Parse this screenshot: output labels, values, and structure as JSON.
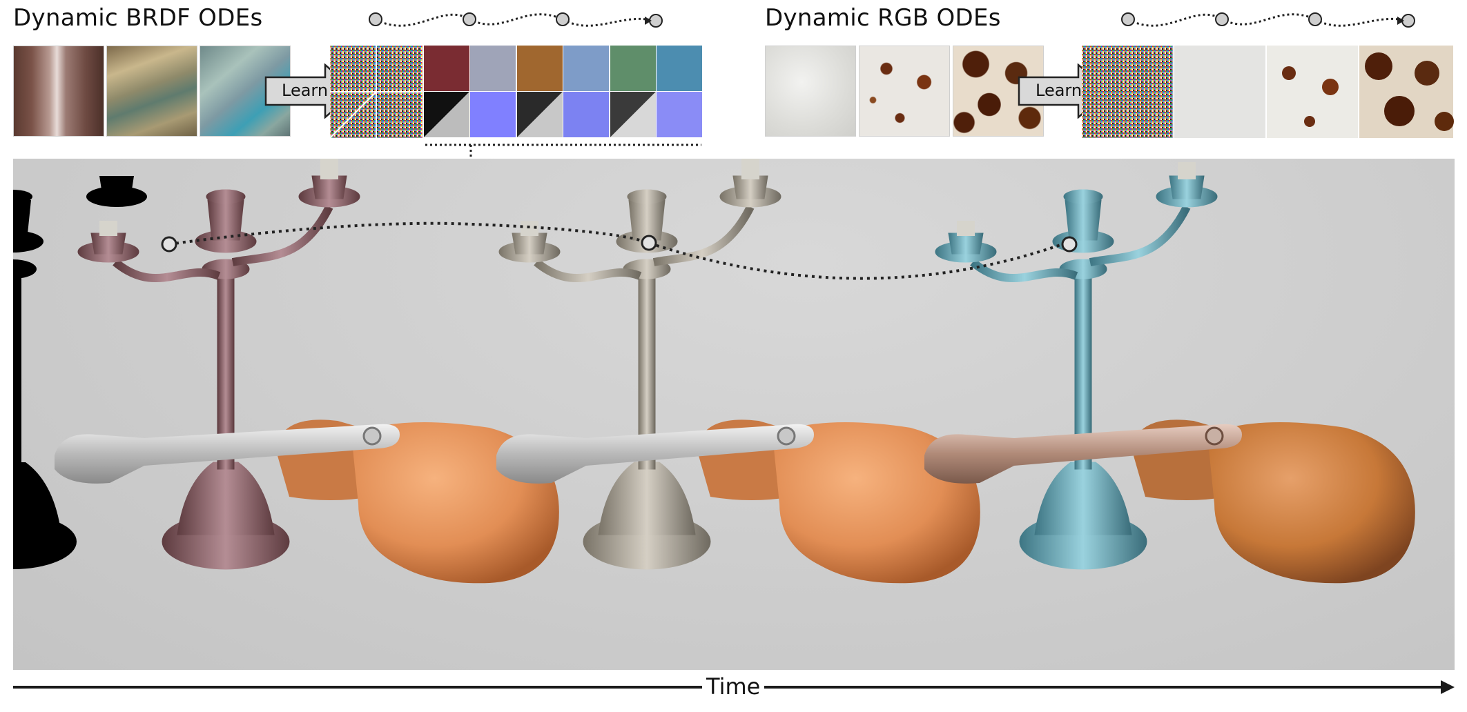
{
  "brdf_section": {
    "title": "Dynamic BRDF ODEs",
    "learn_label": "Learn"
  },
  "rgb_section": {
    "title": "Dynamic RGB ODEs",
    "learn_label": "Learn"
  },
  "time_label": "Time",
  "colors": {
    "axis": "#1a1a1a",
    "arrow_fill": "#d9d9d9",
    "node_fill": "#cfcfcf",
    "copper": "#a07a80",
    "silver": "#b8b0a6",
    "teal": "#6fb0bf",
    "leather": "#e89a62"
  }
}
